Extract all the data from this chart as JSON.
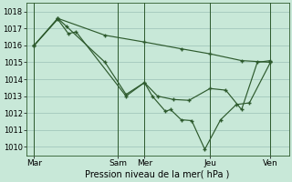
{
  "background_color": "#c8e8d8",
  "grid_color": "#a8ccc0",
  "line_color": "#2d5a2d",
  "xlabel": "Pression niveau de la mer( hPa )",
  "ylim": [
    1009.5,
    1018.5
  ],
  "yticks": [
    1010,
    1011,
    1012,
    1013,
    1014,
    1015,
    1016,
    1017,
    1018
  ],
  "xlim": [
    0,
    10
  ],
  "xtick_positions": [
    0.3,
    3.5,
    4.5,
    7.0,
    9.3
  ],
  "xtick_labels": [
    "Mar",
    "Sam",
    "Mer",
    "Jeu",
    "Ven"
  ],
  "vline_positions": [
    0.3,
    3.5,
    4.5,
    7.0,
    9.3
  ],
  "line1_x": [
    0.3,
    1.2,
    1.6,
    1.9,
    3.8,
    4.5,
    4.8,
    5.3,
    5.5,
    5.9,
    6.3,
    6.8,
    7.4,
    8.0,
    8.5,
    9.3
  ],
  "line1_y": [
    1016.0,
    1017.55,
    1016.7,
    1016.8,
    1013.0,
    1013.8,
    1013.0,
    1012.1,
    1012.2,
    1011.6,
    1011.55,
    1009.85,
    1011.6,
    1012.5,
    1012.6,
    1015.0
  ],
  "line2_x": [
    0.3,
    1.2,
    1.55,
    3.0,
    3.8,
    4.5,
    5.0,
    5.6,
    6.2,
    7.0,
    7.6,
    8.2,
    8.8,
    9.3
  ],
  "line2_y": [
    1016.0,
    1017.6,
    1017.1,
    1015.0,
    1013.1,
    1013.8,
    1013.0,
    1012.8,
    1012.75,
    1013.45,
    1013.35,
    1012.2,
    1015.0,
    1015.1
  ],
  "line3_x": [
    0.3,
    1.2,
    3.0,
    4.5,
    5.9,
    7.0,
    8.2,
    9.3
  ],
  "line3_y": [
    1016.0,
    1017.6,
    1016.6,
    1016.2,
    1015.8,
    1015.5,
    1015.1,
    1015.0
  ],
  "ylabel_fontsize": 6,
  "xlabel_fontsize": 7,
  "ytick_fontsize": 6,
  "xtick_fontsize": 6.5
}
